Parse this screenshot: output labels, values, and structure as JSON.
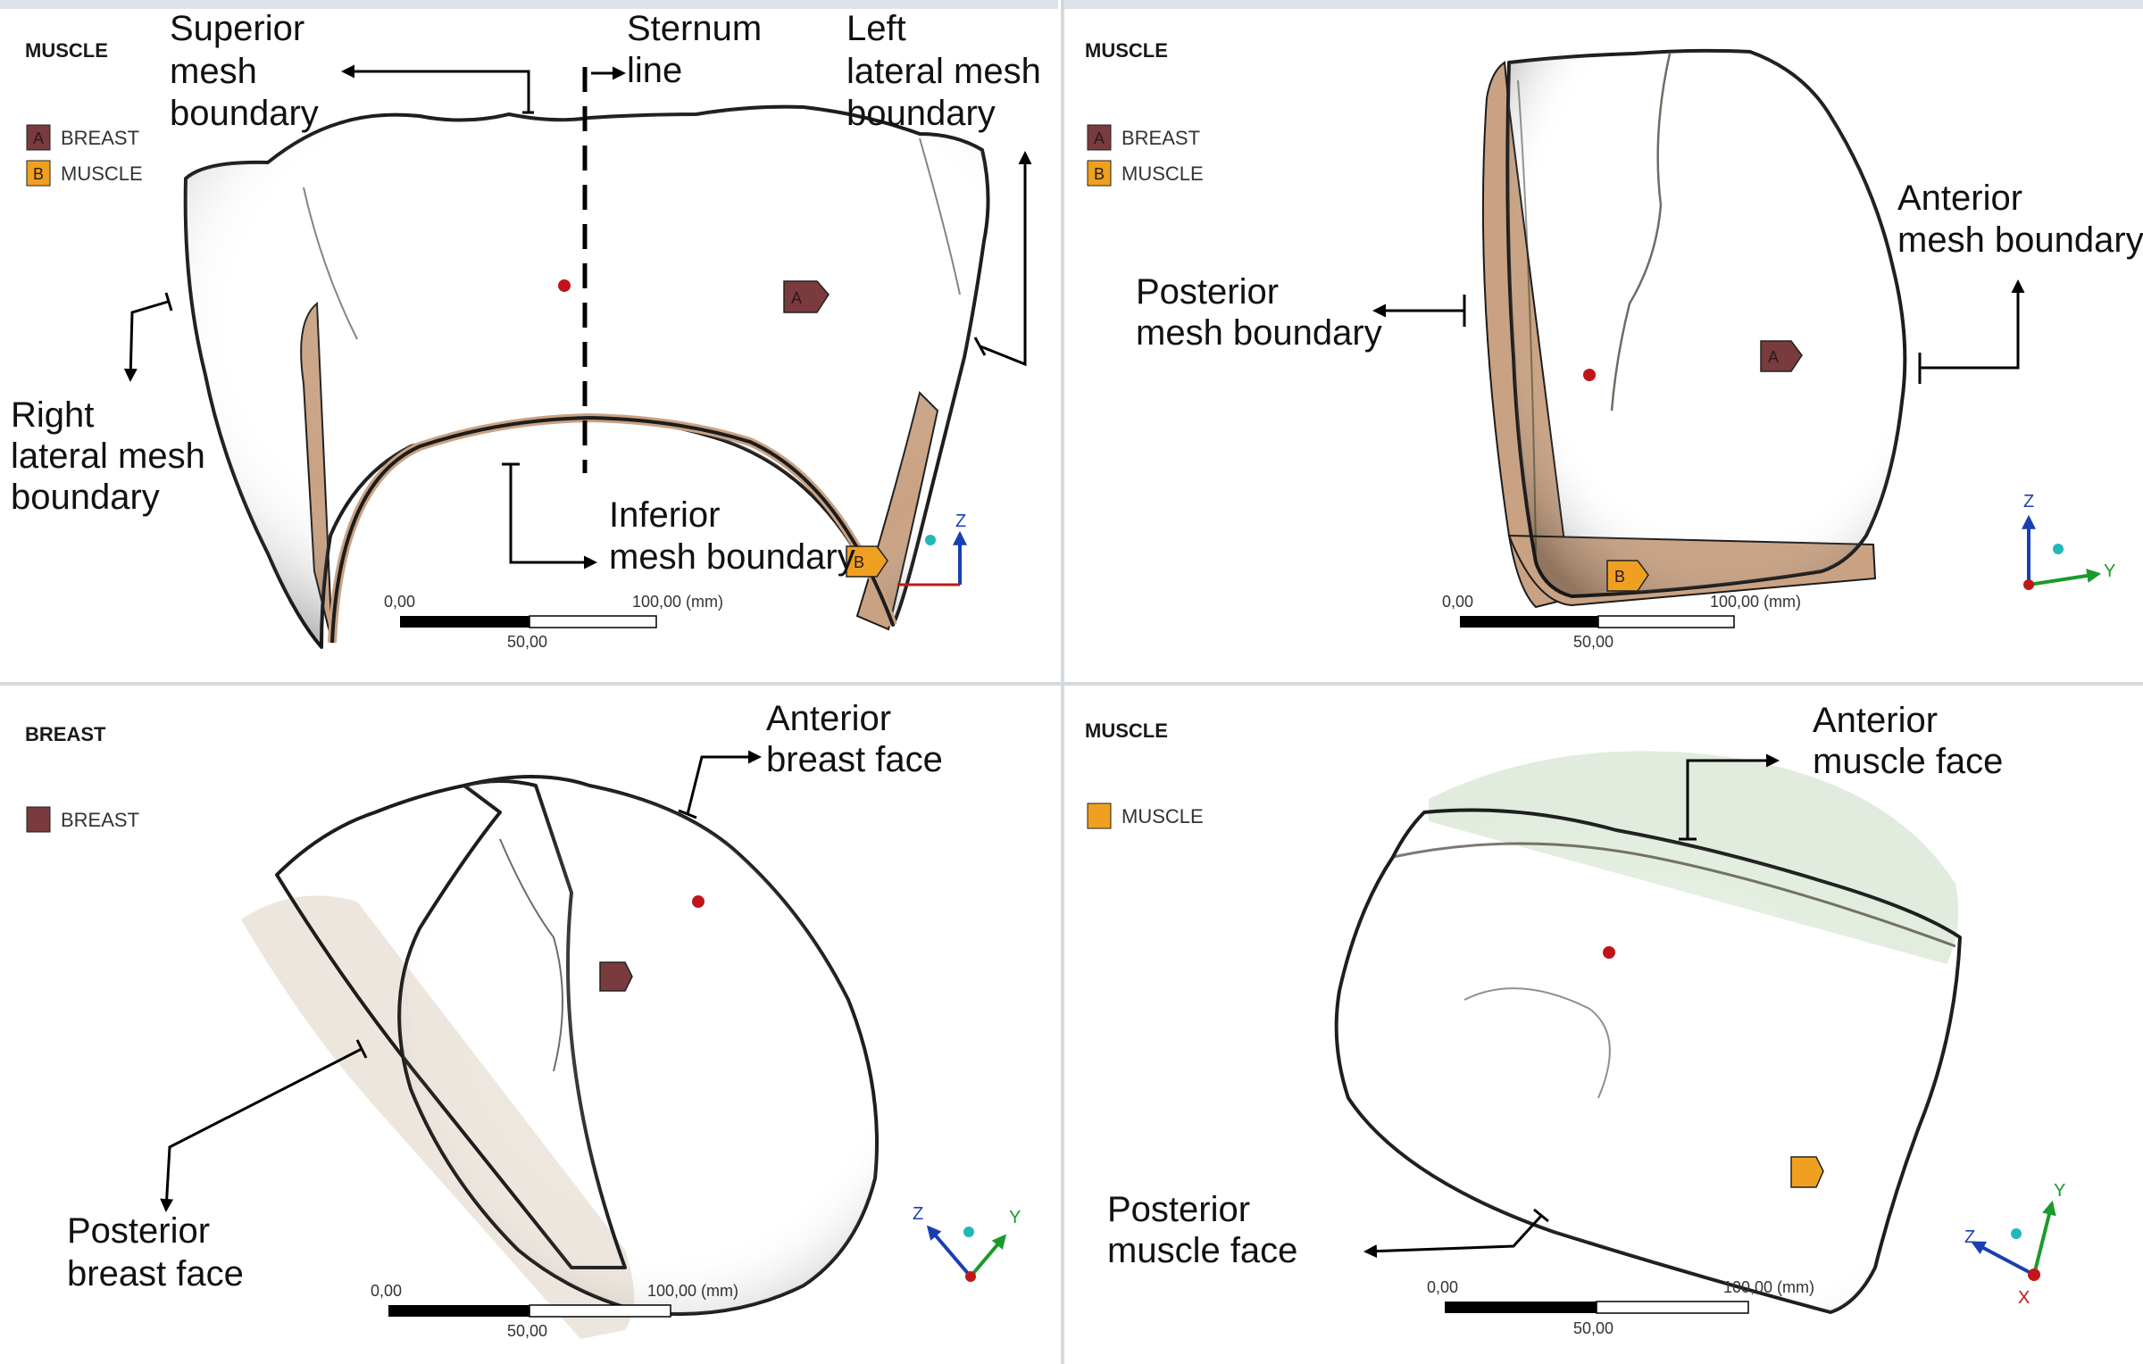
{
  "panels": [
    {
      "title": "MUSCLE",
      "legend": [
        {
          "key": "A",
          "label": "BREAST",
          "color": "#7a3b3e"
        },
        {
          "key": "B",
          "label": "MUSCLE",
          "color": "#f0a020"
        }
      ],
      "scale": {
        "start": "0,00",
        "mid": "50,00",
        "end": "100,00 (mm)"
      },
      "labels": {
        "superior": [
          "Superior",
          "mesh",
          "boundary"
        ],
        "sternum": [
          "Sternum",
          "line"
        ],
        "left_lateral": [
          "Left",
          "lateral mesh",
          "boundary"
        ],
        "right_lateral": [
          "Right",
          "lateral mesh",
          "boundary"
        ],
        "inferior": [
          "Inferior",
          "mesh boundary"
        ]
      },
      "axes": [
        "Z"
      ]
    },
    {
      "title": "MUSCLE",
      "legend": [
        {
          "key": "A",
          "label": "BREAST",
          "color": "#7a3b3e"
        },
        {
          "key": "B",
          "label": "MUSCLE",
          "color": "#f0a020"
        }
      ],
      "scale": {
        "start": "0,00",
        "mid": "50,00",
        "end": "100,00 (mm)"
      },
      "labels": {
        "posterior": [
          "Posterior",
          "mesh boundary"
        ],
        "anterior": [
          "Anterior",
          "mesh boundary"
        ]
      },
      "axes": [
        "Z",
        "Y"
      ]
    },
    {
      "title": "BREAST",
      "legend": [
        {
          "key": "",
          "label": "BREAST",
          "color": "#7a3b3e"
        }
      ],
      "scale": {
        "start": "0,00",
        "mid": "50,00",
        "end": "100,00 (mm)"
      },
      "labels": {
        "anterior": [
          "Anterior",
          "breast face"
        ],
        "posterior": [
          "Posterior",
          "breast face"
        ]
      },
      "axes": [
        "Z",
        "Y"
      ]
    },
    {
      "title": "MUSCLE",
      "legend": [
        {
          "key": "",
          "label": "MUSCLE",
          "color": "#f0a020"
        }
      ],
      "scale": {
        "start": "0,00",
        "mid": "50,00",
        "end": "100,00 (mm)"
      },
      "labels": {
        "anterior": [
          "Anterior",
          "muscle face"
        ],
        "posterior": [
          "Posterior",
          "muscle face"
        ]
      },
      "axes": [
        "Z",
        "Y",
        "X"
      ]
    }
  ],
  "colors": {
    "breast_mesh": "#8daa7b",
    "breast_mesh_light": "#a6c293",
    "muscle_mesh": "#c9a283",
    "muscle_mesh_light": "#dcbc9f",
    "mesh_lines": "#1f2a1a",
    "marker_dot": "#c0141a",
    "axis_z": "#1a3fb0",
    "axis_y": "#1a9a2a",
    "axis_x": "#c01818",
    "axis_center": "#20b8b8"
  }
}
